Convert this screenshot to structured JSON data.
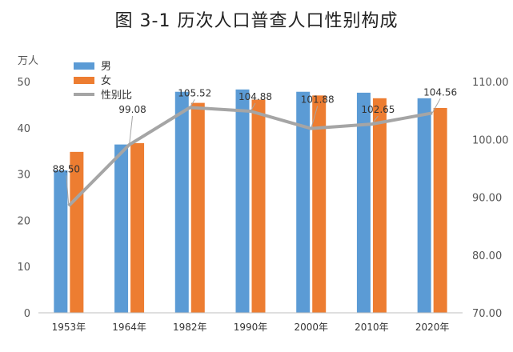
{
  "chart_data": {
    "type": "bar",
    "title": "图 3-1   历次人口普查人口性别构成",
    "ylabel": "万人",
    "categories": [
      "1953年",
      "1964年",
      "1982年",
      "1990年",
      "2000年",
      "2010年",
      "2020年"
    ],
    "series": [
      {
        "name": "男",
        "type": "bar",
        "axis": "left",
        "color": "#5b9bd5",
        "values": [
          30.8,
          36.4,
          47.8,
          48.3,
          47.8,
          47.6,
          46.4
        ]
      },
      {
        "name": "女",
        "type": "bar",
        "axis": "left",
        "color": "#ed7d31",
        "values": [
          34.8,
          36.7,
          45.4,
          46.1,
          47.0,
          46.4,
          44.3
        ]
      },
      {
        "name": "性别比",
        "type": "line",
        "axis": "right",
        "color": "#a5a5a5",
        "values": [
          88.5,
          99.08,
          105.52,
          104.88,
          101.88,
          102.65,
          104.56
        ],
        "labels": [
          "88.50",
          "99.08",
          "105.52",
          "104.88",
          "101.88",
          "102.65",
          "104.56"
        ]
      }
    ],
    "ylim": [
      0,
      50
    ],
    "yticks": [
      "0",
      "10",
      "20",
      "30",
      "40",
      "50"
    ],
    "y2lim": [
      70,
      110
    ],
    "y2ticks": [
      "70.00",
      "80.00",
      "90.00",
      "100.00",
      "110.00"
    ],
    "grid": false,
    "legend": "top-left"
  }
}
